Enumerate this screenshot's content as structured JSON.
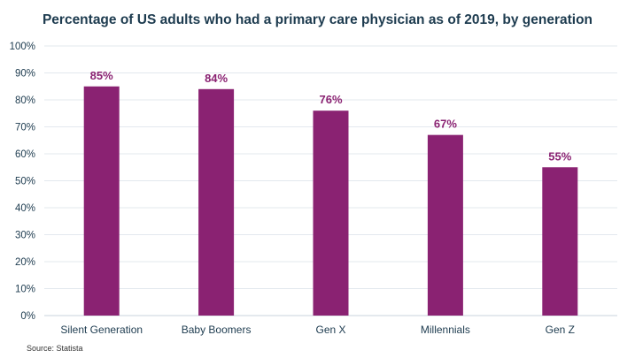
{
  "chart_data": {
    "type": "bar",
    "title": "Percentage of US adults who had a primary care physician as of 2019, by generation",
    "categories": [
      "Silent Generation",
      "Baby Boomers",
      "Gen X",
      "Millennials",
      "Gen Z"
    ],
    "values": [
      85,
      84,
      76,
      67,
      55
    ],
    "value_labels": [
      "85%",
      "84%",
      "76%",
      "67%",
      "55%"
    ],
    "xlabel": "",
    "ylabel": "",
    "ylim": [
      0,
      100
    ],
    "y_ticks": [
      0,
      10,
      20,
      30,
      40,
      50,
      60,
      70,
      80,
      90,
      100
    ],
    "y_tick_labels": [
      "0%",
      "10%",
      "20%",
      "30%",
      "40%",
      "50%",
      "60%",
      "70%",
      "80%",
      "90%",
      "100%"
    ],
    "grid": true,
    "legend": "none"
  },
  "source": "Source: Statista",
  "colors": {
    "bar": "#8a2272",
    "value_label": "#8a2272",
    "gridline": "#e3e8ee",
    "axis_text": "#1d3b4f",
    "baseline": "#c9d3dc"
  }
}
